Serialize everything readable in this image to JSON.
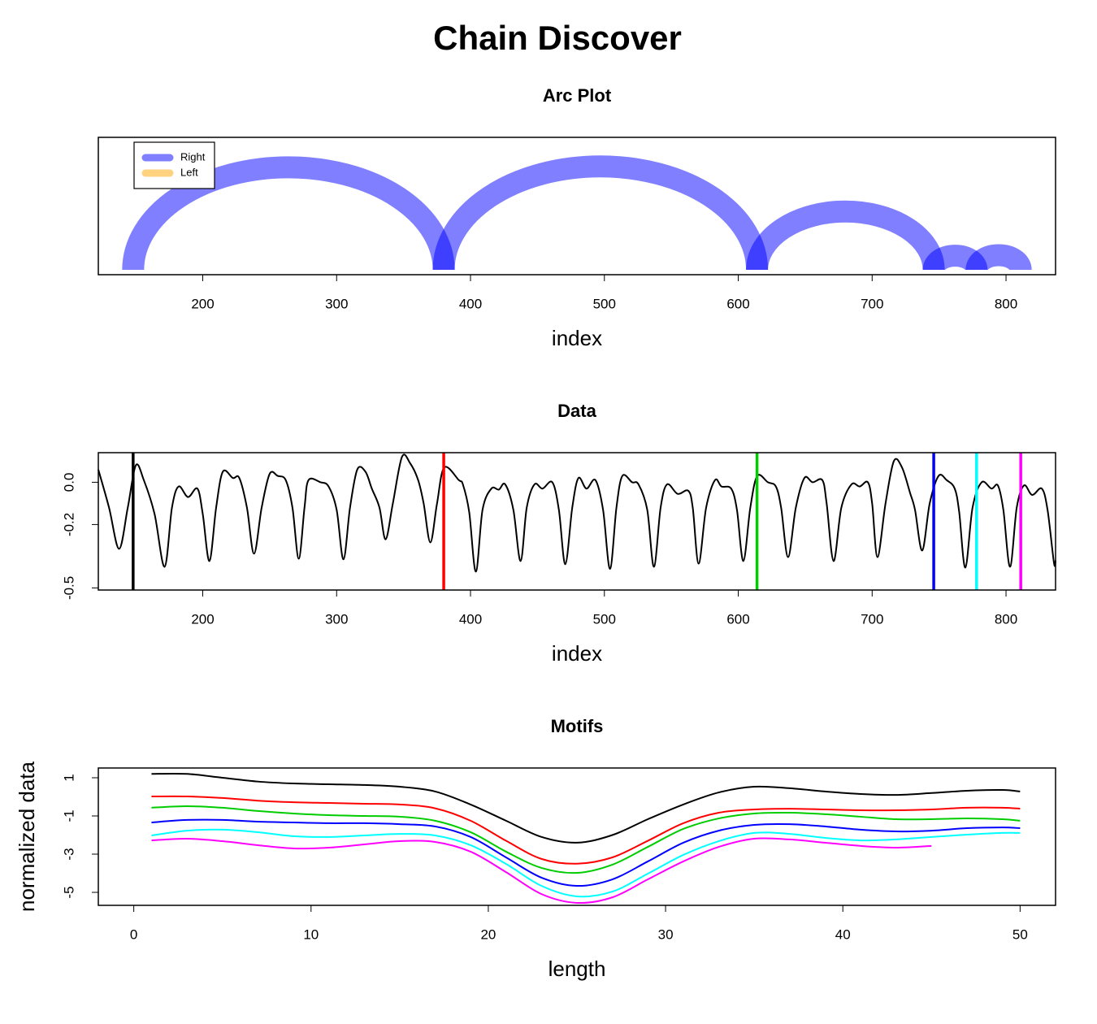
{
  "title": "Chain Discover",
  "chart_data": [
    {
      "type": "arc",
      "title": "Arc Plot",
      "x_label": "index",
      "xlim": [
        122,
        837
      ],
      "xticks": [
        200,
        300,
        400,
        500,
        600,
        700,
        800
      ],
      "legend": "topleft",
      "series": [
        {
          "name": "Right",
          "color": "rgba(0,0,255,0.5)",
          "from": [
            148,
            380,
            614,
            746,
            778
          ],
          "to": [
            380,
            614,
            746,
            778,
            811
          ]
        },
        {
          "name": "Left",
          "color": "rgba(255,165,0,0.5)"
        }
      ]
    },
    {
      "type": "line",
      "title": "Data",
      "x_label": "index",
      "xlim": [
        122,
        837
      ],
      "ylim": [
        -0.51,
        0.14
      ],
      "xticks": [
        200,
        300,
        400,
        500,
        600,
        700,
        800
      ],
      "yticks": [
        {
          "value": 0,
          "label": "0.0"
        },
        -0.2,
        -0.5
      ],
      "x": [
        122,
        130,
        137.5,
        144,
        150,
        156,
        164,
        171.5,
        177,
        182,
        189,
        196,
        200,
        205,
        210,
        215,
        222.5,
        227.3,
        233,
        238.3,
        244,
        250,
        256,
        262,
        267,
        271.7,
        276,
        279,
        288,
        294,
        300,
        305.1,
        310,
        315.4,
        321.5,
        326.3,
        332,
        336.6,
        342,
        348.8,
        354.9,
        360.9,
        365,
        370,
        375,
        380.4,
        391.3,
        394.3,
        399,
        404,
        409,
        415.6,
        421.1,
        425.9,
        432,
        437.4,
        442,
        447.8,
        453.8,
        461.1,
        466,
        470.8,
        476,
        480.6,
        486.6,
        493.3,
        499,
        504.2,
        509,
        513.4,
        520.7,
        525.5,
        532,
        537,
        542,
        546.8,
        554.7,
        562.6,
        566,
        570.4,
        576,
        582.6,
        587.5,
        594.7,
        599,
        603.8,
        609,
        614.2,
        622.1,
        628.1,
        632,
        637.2,
        643,
        649.4,
        655.5,
        662.8,
        666,
        671.2,
        677,
        684.6,
        690.7,
        696.8,
        700,
        704,
        710,
        716.2,
        722.3,
        728.3,
        732,
        737.4,
        743,
        749.6,
        755.7,
        761.7,
        765,
        769.6,
        775,
        781.8,
        789.1,
        793.9,
        798,
        803,
        808,
        813.4,
        819.5,
        826.7,
        831,
        835.8,
        837
      ],
      "series": [
        {
          "color": "#000000",
          "values": [
            0.06,
            -0.12,
            -0.315,
            -0.12,
            0.08,
            0.01,
            -0.15,
            -0.4,
            -0.12,
            -0.02,
            -0.07,
            -0.03,
            -0.15,
            -0.373,
            -0.12,
            0.05,
            0.02,
            0.02,
            -0.12,
            -0.338,
            -0.12,
            0.04,
            0.03,
            0.01,
            -0.12,
            -0.362,
            -0.12,
            0.01,
            0,
            -0.02,
            -0.13,
            -0.365,
            -0.12,
            0.06,
            0.05,
            -0.03,
            -0.12,
            -0.27,
            -0.1,
            0.12,
            0.09,
            0.01,
            -0.1,
            -0.285,
            -0.1,
            0.07,
            0.01,
            -0.01,
            -0.14,
            -0.423,
            -0.13,
            -0.03,
            -0.035,
            -0.01,
            -0.13,
            -0.373,
            -0.12,
            -0.01,
            -0.03,
            0,
            -0.13,
            -0.388,
            -0.12,
            0.02,
            -0.03,
            0.01,
            -0.13,
            -0.41,
            -0.12,
            0.03,
            0,
            -0.01,
            -0.13,
            -0.4,
            -0.12,
            -0.01,
            -0.055,
            -0.04,
            -0.12,
            -0.385,
            -0.12,
            0.01,
            -0.02,
            -0.03,
            -0.13,
            -0.373,
            -0.12,
            0.03,
            0,
            -0.02,
            -0.12,
            -0.354,
            -0.12,
            0.02,
            0,
            0.01,
            -0.1,
            -0.373,
            -0.12,
            -0.01,
            -0.02,
            0,
            -0.1,
            -0.354,
            -0.1,
            0.1,
            0.07,
            -0.05,
            -0.13,
            -0.323,
            -0.1,
            0.03,
            0.01,
            -0.03,
            -0.14,
            -0.404,
            -0.12,
            0,
            -0.03,
            -0.015,
            -0.13,
            -0.4,
            -0.12,
            -0.015,
            -0.06,
            -0.03,
            -0.13,
            -0.381,
            -0.37
          ]
        }
      ],
      "markers": {
        "x": [
          148,
          380,
          614,
          746,
          778,
          811
        ],
        "colors": [
          "#000000",
          "#ff0000",
          "#00cd00",
          "#0000ff",
          "#00ffff",
          "#ff00ff"
        ]
      }
    },
    {
      "type": "line",
      "title": "Motifs",
      "x_label": "length",
      "y_label": "normalized data",
      "xlim": [
        -2,
        52
      ],
      "ylim": [
        -5.68,
        1.51
      ],
      "xticks": [
        0,
        10,
        20,
        30,
        40,
        50
      ],
      "yticks": [
        1,
        -1,
        -3,
        -5
      ],
      "x": [
        1,
        3,
        5,
        7,
        9,
        11,
        13,
        15,
        17,
        19,
        21,
        23,
        25,
        27,
        29,
        31,
        33,
        35,
        37,
        39,
        41,
        43,
        45,
        47,
        49,
        50
      ],
      "series": [
        {
          "color": "#000000",
          "values": [
            1.2,
            1.2,
            1.0,
            0.8,
            0.7,
            0.66,
            0.62,
            0.53,
            0.28,
            -0.4,
            -1.25,
            -2.1,
            -2.4,
            -2.0,
            -1.17,
            -0.4,
            0.23,
            0.53,
            0.45,
            0.28,
            0.15,
            0.1,
            0.2,
            0.32,
            0.36,
            0.28
          ]
        },
        {
          "color": "#ff0000",
          "values": [
            0.02,
            0.02,
            -0.06,
            -0.2,
            -0.28,
            -0.32,
            -0.36,
            -0.4,
            -0.6,
            -1.25,
            -2.3,
            -3.25,
            -3.5,
            -3.17,
            -2.3,
            -1.38,
            -0.83,
            -0.66,
            -0.62,
            -0.66,
            -0.7,
            -0.7,
            -0.66,
            -0.57,
            -0.57,
            -0.62
          ]
        },
        {
          "color": "#00cd00",
          "values": [
            -0.57,
            -0.49,
            -0.57,
            -0.74,
            -0.87,
            -0.96,
            -1.0,
            -1.04,
            -1.25,
            -1.85,
            -2.87,
            -3.72,
            -3.98,
            -3.55,
            -2.62,
            -1.68,
            -1.13,
            -0.87,
            -0.83,
            -0.91,
            -1.04,
            -1.17,
            -1.17,
            -1.13,
            -1.17,
            -1.25
          ]
        },
        {
          "color": "#0000ff",
          "values": [
            -1.34,
            -1.21,
            -1.21,
            -1.3,
            -1.34,
            -1.38,
            -1.38,
            -1.43,
            -1.55,
            -2.1,
            -3.17,
            -4.23,
            -4.66,
            -4.32,
            -3.38,
            -2.4,
            -1.77,
            -1.47,
            -1.43,
            -1.55,
            -1.72,
            -1.81,
            -1.77,
            -1.64,
            -1.6,
            -1.64
          ]
        },
        {
          "color": "#00ffff",
          "values": [
            -2.02,
            -1.77,
            -1.72,
            -1.85,
            -2.06,
            -2.1,
            -2.02,
            -1.94,
            -2.02,
            -2.53,
            -3.51,
            -4.66,
            -5.21,
            -4.96,
            -4.02,
            -3.04,
            -2.32,
            -1.89,
            -1.94,
            -2.15,
            -2.28,
            -2.23,
            -2.1,
            -1.98,
            -1.89,
            -1.89
          ]
        },
        {
          "color": "#ff00ff",
          "values": [
            -2.28,
            -2.19,
            -2.32,
            -2.53,
            -2.7,
            -2.66,
            -2.49,
            -2.32,
            -2.36,
            -2.87,
            -3.94,
            -5.09,
            -5.55,
            -5.26,
            -4.32,
            -3.38,
            -2.62,
            -2.19,
            -2.23,
            -2.4,
            -2.57,
            -2.66,
            -2.57,
            null,
            null,
            null
          ]
        }
      ]
    }
  ]
}
